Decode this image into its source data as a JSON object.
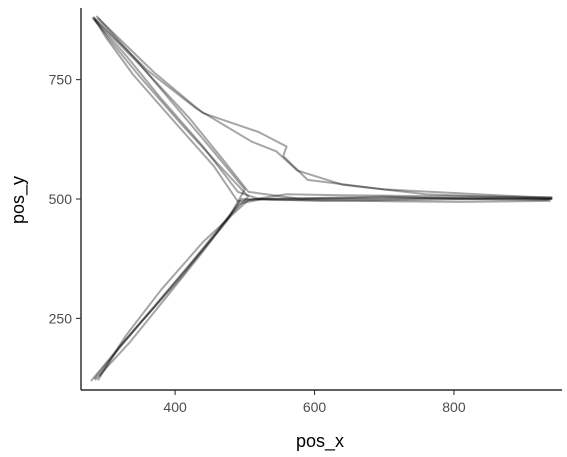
{
  "chart_data": {
    "type": "line",
    "title": "",
    "xlabel": "pos_x",
    "ylabel": "pos_y",
    "xlim": [
      265,
      955
    ],
    "ylim": [
      100,
      900
    ],
    "x_ticks": [
      400,
      600,
      800
    ],
    "y_ticks": [
      250,
      500,
      750
    ],
    "x_tick_labels": [
      "400",
      "600",
      "800"
    ],
    "y_tick_labels": [
      "250",
      "500",
      "750"
    ],
    "grid": false,
    "legend": "none",
    "line_color": "#000000",
    "line_opacity": 0.35,
    "series": [
      {
        "values": [
          [
            940,
            500
          ],
          [
            800,
            502
          ],
          [
            700,
            503
          ],
          [
            600,
            501
          ],
          [
            520,
            500
          ],
          [
            490,
            495
          ],
          [
            455,
            570
          ],
          [
            400,
            660
          ],
          [
            340,
            760
          ],
          [
            300,
            840
          ],
          [
            285,
            875
          ]
        ]
      },
      {
        "values": [
          [
            938,
            496
          ],
          [
            810,
            494
          ],
          [
            720,
            495
          ],
          [
            620,
            497
          ],
          [
            540,
            498
          ],
          [
            495,
            500
          ],
          [
            460,
            430
          ],
          [
            405,
            330
          ],
          [
            350,
            240
          ],
          [
            310,
            170
          ],
          [
            285,
            125
          ]
        ]
      },
      {
        "values": [
          [
            282,
            878
          ],
          [
            330,
            800
          ],
          [
            380,
            710
          ],
          [
            440,
            610
          ],
          [
            490,
            515
          ],
          [
            520,
            500
          ],
          [
            600,
            502
          ],
          [
            700,
            505
          ],
          [
            800,
            500
          ],
          [
            935,
            498
          ]
        ]
      },
      {
        "values": [
          [
            286,
            122
          ],
          [
            335,
            200
          ],
          [
            385,
            290
          ],
          [
            440,
            390
          ],
          [
            492,
            490
          ],
          [
            525,
            500
          ],
          [
            610,
            496
          ],
          [
            720,
            498
          ],
          [
            830,
            500
          ],
          [
            940,
            502
          ]
        ]
      },
      {
        "values": [
          [
            280,
            120
          ],
          [
            320,
            190
          ],
          [
            370,
            275
          ],
          [
            425,
            370
          ],
          [
            475,
            460
          ],
          [
            505,
            505
          ],
          [
            470,
            560
          ],
          [
            410,
            655
          ],
          [
            350,
            755
          ],
          [
            305,
            835
          ],
          [
            283,
            880
          ]
        ]
      },
      {
        "values": [
          [
            288,
            882
          ],
          [
            345,
            790
          ],
          [
            400,
            695
          ],
          [
            455,
            600
          ],
          [
            500,
            520
          ],
          [
            475,
            455
          ],
          [
            420,
            360
          ],
          [
            365,
            265
          ],
          [
            320,
            190
          ],
          [
            290,
            122
          ]
        ]
      },
      {
        "values": [
          [
            940,
            504
          ],
          [
            760,
            506
          ],
          [
            640,
            508
          ],
          [
            560,
            510
          ],
          [
            505,
            498
          ],
          [
            440,
            410
          ],
          [
            380,
            310
          ],
          [
            330,
            215
          ],
          [
            292,
            130
          ]
        ]
      },
      {
        "values": [
          [
            285,
            876
          ],
          [
            350,
            780
          ],
          [
            420,
            670
          ],
          [
            470,
            580
          ],
          [
            505,
            515
          ],
          [
            580,
            500
          ],
          [
            680,
            500
          ],
          [
            800,
            502
          ],
          [
            938,
            500
          ]
        ]
      },
      {
        "values": [
          [
            284,
            880
          ],
          [
            360,
            770
          ],
          [
            430,
            690
          ],
          [
            510,
            620
          ],
          [
            545,
            600
          ],
          [
            560,
            580
          ],
          [
            575,
            560
          ],
          [
            640,
            530
          ],
          [
            760,
            510
          ],
          [
            940,
            500
          ]
        ]
      },
      {
        "values": [
          [
            290,
            878
          ],
          [
            370,
            765
          ],
          [
            440,
            680
          ],
          [
            520,
            640
          ],
          [
            560,
            610
          ],
          [
            555,
            590
          ],
          [
            590,
            540
          ],
          [
            700,
            520
          ],
          [
            940,
            502
          ]
        ]
      }
    ]
  }
}
